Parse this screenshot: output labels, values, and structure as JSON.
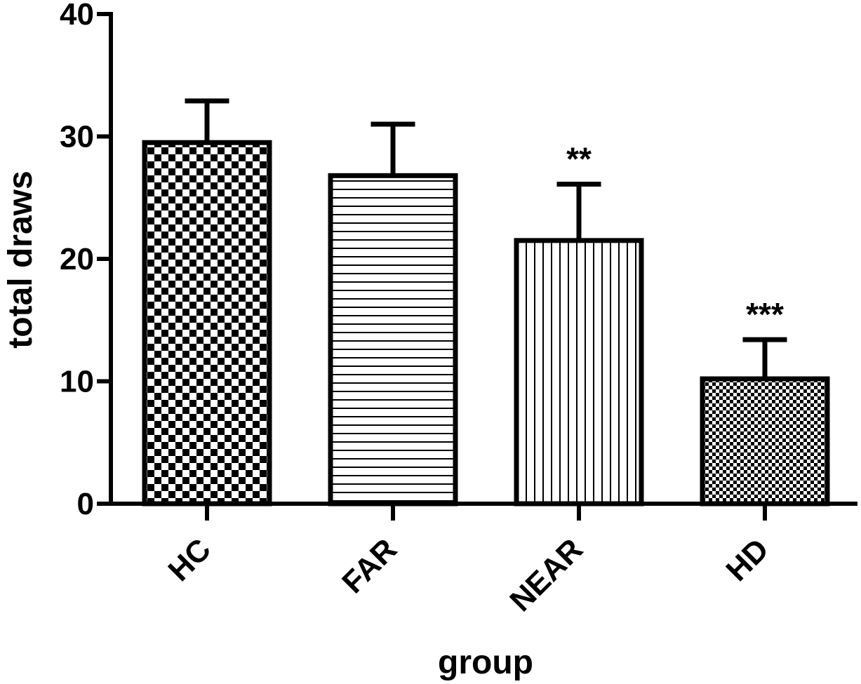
{
  "chart_data": {
    "type": "bar",
    "title": "",
    "xlabel": "group",
    "ylabel": "total draws",
    "ylim": [
      0,
      40
    ],
    "yticks": [
      "0",
      "10",
      "20",
      "30",
      "40"
    ],
    "categories": [
      "HC",
      "FAR",
      "NEAR",
      "HD"
    ],
    "values": [
      29.5,
      26.8,
      21.5,
      10.2
    ],
    "error_upper": [
      3.4,
      4.2,
      4.6,
      3.2
    ],
    "significance": [
      "",
      "",
      "**",
      "***"
    ],
    "fill_patterns": [
      "checker",
      "horizontal-lines",
      "vertical-lines",
      "fine-checker"
    ],
    "grid": false,
    "legend": "none",
    "bar_color": "#ffffff",
    "outline_color": "#000000"
  }
}
